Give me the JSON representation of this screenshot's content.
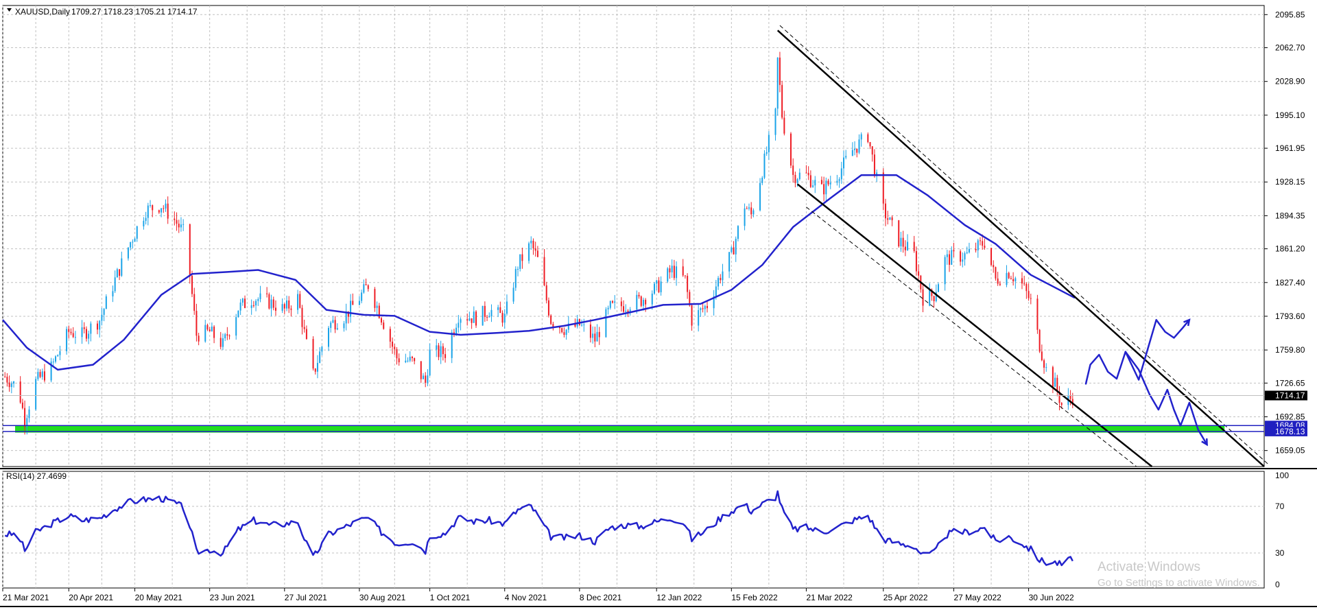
{
  "chart_data": [
    {
      "type": "candlestick",
      "header": {
        "symbol": "XAUUSD,Daily",
        "ohlc": "1709.27 1718.23 1705.21 1714.17"
      },
      "y_ticks": [
        2095.85,
        2062.7,
        2028.9,
        1995.1,
        1961.95,
        1928.15,
        1894.35,
        1861.2,
        1827.4,
        1793.6,
        1759.8,
        1726.65,
        1692.85,
        1659.05
      ],
      "y_tick_labels": [
        "2095.85",
        "2062.70",
        "2028.90",
        "1995.10",
        "1961.95",
        "1928.15",
        "1894.35",
        "1861.20",
        "1827.40",
        "1793.60",
        "1759.80",
        "1726.65",
        "1692.85",
        "1659.05"
      ],
      "ylim": [
        1643,
        2105
      ],
      "x_ticks": [
        "2021-03-21",
        "2021-04-20",
        "2021-05-20",
        "2021-06-23",
        "2021-07-27",
        "2021-08-30",
        "2021-10-01",
        "2021-11-04",
        "2021-12-08",
        "2022-01-12",
        "2022-02-15",
        "2022-03-21",
        "2022-04-25",
        "2022-05-27",
        "2022-06-30"
      ],
      "x_tick_labels": [
        "21 Mar 2021",
        "20 Apr 2021",
        "20 May 2021",
        "23 Jun 2021",
        "27 Jul 2021",
        "30 Aug 2021",
        "1 Oct 2021",
        "4 Nov 2021",
        "8 Dec 2021",
        "12 Jan 2022",
        "15 Feb 2022",
        "21 Mar 2022",
        "25 Apr 2022",
        "27 May 2022",
        "30 Jun 2022"
      ],
      "xlim": [
        "2021-03-21",
        "2022-10-15"
      ],
      "price_path": [
        [
          "2021-03-21",
          1735
        ],
        [
          "2021-03-28",
          1722
        ],
        [
          "2021-03-31",
          1690
        ],
        [
          "2021-04-05",
          1728
        ],
        [
          "2021-04-12",
          1742
        ],
        [
          "2021-04-20",
          1778
        ],
        [
          "2021-04-26",
          1775
        ],
        [
          "2021-05-04",
          1790
        ],
        [
          "2021-05-11",
          1830
        ],
        [
          "2021-05-18",
          1868
        ],
        [
          "2021-05-25",
          1900
        ],
        [
          "2021-06-01",
          1905
        ],
        [
          "2021-06-07",
          1890
        ],
        [
          "2021-06-12",
          1875
        ],
        [
          "2021-06-17",
          1775
        ],
        [
          "2021-06-23",
          1778
        ],
        [
          "2021-06-29",
          1765
        ],
        [
          "2021-07-06",
          1802
        ],
        [
          "2021-07-13",
          1812
        ],
        [
          "2021-07-20",
          1808
        ],
        [
          "2021-07-27",
          1800
        ],
        [
          "2021-08-02",
          1812
        ],
        [
          "2021-08-06",
          1765
        ],
        [
          "2021-08-09",
          1735
        ],
        [
          "2021-08-16",
          1785
        ],
        [
          "2021-08-23",
          1793
        ],
        [
          "2021-08-30",
          1812
        ],
        [
          "2021-09-03",
          1825
        ],
        [
          "2021-09-09",
          1793
        ],
        [
          "2021-09-16",
          1752
        ],
        [
          "2021-09-23",
          1748
        ],
        [
          "2021-09-29",
          1727
        ],
        [
          "2021-10-01",
          1757
        ],
        [
          "2021-10-08",
          1757
        ],
        [
          "2021-10-14",
          1795
        ],
        [
          "2021-10-22",
          1792
        ],
        [
          "2021-10-28",
          1800
        ],
        [
          "2021-11-04",
          1792
        ],
        [
          "2021-11-10",
          1845
        ],
        [
          "2021-11-16",
          1866
        ],
        [
          "2021-11-19",
          1850
        ],
        [
          "2021-11-25",
          1790
        ],
        [
          "2021-12-02",
          1780
        ],
        [
          "2021-12-08",
          1785
        ],
        [
          "2021-12-15",
          1770
        ],
        [
          "2021-12-22",
          1802
        ],
        [
          "2021-12-29",
          1805
        ],
        [
          "2022-01-05",
          1810
        ],
        [
          "2022-01-12",
          1822
        ],
        [
          "2022-01-19",
          1840
        ],
        [
          "2022-01-25",
          1830
        ],
        [
          "2022-01-28",
          1790
        ],
        [
          "2022-02-04",
          1805
        ],
        [
          "2022-02-10",
          1835
        ],
        [
          "2022-02-15",
          1855
        ],
        [
          "2022-02-21",
          1905
        ],
        [
          "2022-02-24",
          1895
        ],
        [
          "2022-03-01",
          1940
        ],
        [
          "2022-03-07",
          1995
        ],
        [
          "2022-03-08",
          2050
        ],
        [
          "2022-03-10",
          1995
        ],
        [
          "2022-03-15",
          1935
        ],
        [
          "2022-03-21",
          1935
        ],
        [
          "2022-03-28",
          1920
        ],
        [
          "2022-04-04",
          1935
        ],
        [
          "2022-04-11",
          1960
        ],
        [
          "2022-04-18",
          1975
        ],
        [
          "2022-04-22",
          1930
        ],
        [
          "2022-04-25",
          1900
        ],
        [
          "2022-05-02",
          1870
        ],
        [
          "2022-05-09",
          1855
        ],
        [
          "2022-05-13",
          1812
        ],
        [
          "2022-05-18",
          1815
        ],
        [
          "2022-05-23",
          1850
        ],
        [
          "2022-05-27",
          1853
        ],
        [
          "2022-06-02",
          1855
        ],
        [
          "2022-06-10",
          1868
        ],
        [
          "2022-06-15",
          1830
        ],
        [
          "2022-06-21",
          1838
        ],
        [
          "2022-06-27",
          1825
        ],
        [
          "2022-07-01",
          1808
        ],
        [
          "2022-07-05",
          1765
        ],
        [
          "2022-07-08",
          1740
        ],
        [
          "2022-07-12",
          1725
        ],
        [
          "2022-07-15",
          1705
        ],
        [
          "2022-07-21",
          1714
        ]
      ],
      "moving_average": [
        [
          "2021-03-21",
          1790
        ],
        [
          "2021-04-01",
          1762
        ],
        [
          "2021-04-15",
          1740
        ],
        [
          "2021-05-01",
          1745
        ],
        [
          "2021-05-15",
          1770
        ],
        [
          "2021-06-01",
          1815
        ],
        [
          "2021-06-15",
          1836
        ],
        [
          "2021-07-01",
          1838
        ],
        [
          "2021-07-15",
          1840
        ],
        [
          "2021-08-01",
          1830
        ],
        [
          "2021-08-15",
          1800
        ],
        [
          "2021-09-01",
          1795
        ],
        [
          "2021-09-15",
          1794
        ],
        [
          "2021-10-01",
          1778
        ],
        [
          "2021-10-15",
          1775
        ],
        [
          "2021-11-01",
          1777
        ],
        [
          "2021-11-15",
          1779
        ],
        [
          "2021-12-01",
          1784
        ],
        [
          "2021-12-15",
          1790
        ],
        [
          "2022-01-01",
          1798
        ],
        [
          "2022-01-15",
          1805
        ],
        [
          "2022-02-01",
          1806
        ],
        [
          "2022-02-15",
          1820
        ],
        [
          "2022-03-01",
          1845
        ],
        [
          "2022-03-15",
          1883
        ],
        [
          "2022-04-01",
          1912
        ],
        [
          "2022-04-15",
          1935
        ],
        [
          "2022-05-01",
          1935
        ],
        [
          "2022-05-15",
          1915
        ],
        [
          "2022-06-01",
          1885
        ],
        [
          "2022-06-15",
          1866
        ],
        [
          "2022-07-01",
          1835
        ],
        [
          "2022-07-21",
          1812
        ]
      ],
      "channel_lines": [
        {
          "style": "solid",
          "points": [
            [
              "2022-03-08",
              2080
            ],
            [
              "2022-10-15",
              1643
            ]
          ]
        },
        {
          "style": "dashed",
          "points": [
            [
              "2022-03-09",
              2085
            ],
            [
              "2022-10-17",
              1645
            ]
          ]
        },
        {
          "style": "solid",
          "points": [
            [
              "2022-03-17",
              1926
            ],
            [
              "2022-08-25",
              1643
            ]
          ]
        },
        {
          "style": "dashed",
          "points": [
            [
              "2022-03-21",
              1903
            ],
            [
              "2022-08-18",
              1643
            ]
          ]
        }
      ],
      "drawn_paths": [
        [
          [
            "2022-07-26",
            1726
          ],
          [
            "2022-07-28",
            1745
          ],
          [
            "2022-08-01",
            1755
          ],
          [
            "2022-08-05",
            1738
          ],
          [
            "2022-08-09",
            1731
          ],
          [
            "2022-08-13",
            1758
          ],
          [
            "2022-08-19",
            1730
          ],
          [
            "2022-08-23",
            1760
          ],
          [
            "2022-08-27",
            1790
          ],
          [
            "2022-08-31",
            1778
          ],
          [
            "2022-09-04",
            1772
          ],
          [
            "2022-09-08",
            1782
          ],
          [
            "2022-09-11",
            1790
          ]
        ],
        [
          [
            "2022-08-13",
            1758
          ],
          [
            "2022-08-19",
            1740
          ],
          [
            "2022-08-24",
            1715
          ],
          [
            "2022-08-28",
            1700
          ],
          [
            "2022-09-01",
            1720
          ],
          [
            "2022-09-04",
            1700
          ],
          [
            "2022-09-07",
            1684
          ],
          [
            "2022-09-11",
            1707
          ],
          [
            "2022-09-15",
            1680
          ],
          [
            "2022-09-19",
            1665
          ]
        ]
      ],
      "horizontal_levels": [
        {
          "value": 1684.08,
          "label": "1684.08",
          "color": "#2020c0"
        },
        {
          "value": 1678.13,
          "label": "1678.13",
          "color": "#2020c0"
        }
      ],
      "zone": {
        "from": 1677,
        "to": 1684,
        "x_end": "2022-09-27",
        "color": "#22dd22"
      },
      "current_price": {
        "value": 1714.17,
        "label": "1714.17"
      },
      "colors": {
        "bull": "#19a3e8",
        "bear": "#ee1c24",
        "ma": "#2222cc",
        "channel": "#000000",
        "grid": "#c0c0c0"
      }
    },
    {
      "type": "line",
      "title": "RSI(14) 27.4699",
      "y_ticks": [
        100,
        70,
        30,
        0
      ],
      "y_tick_labels": [
        "100",
        "70",
        "30",
        "0"
      ],
      "ylim": [
        0,
        100
      ],
      "series": [
        {
          "values": [
            [
              "2021-03-21",
              46
            ],
            [
              "2021-03-28",
              46
            ],
            [
              "2021-03-31",
              32
            ],
            [
              "2021-04-05",
              48
            ],
            [
              "2021-04-12",
              55
            ],
            [
              "2021-04-20",
              62
            ],
            [
              "2021-04-26",
              58
            ],
            [
              "2021-05-04",
              60
            ],
            [
              "2021-05-11",
              68
            ],
            [
              "2021-05-18",
              74
            ],
            [
              "2021-05-25",
              76
            ],
            [
              "2021-06-01",
              77
            ],
            [
              "2021-06-07",
              73
            ],
            [
              "2021-06-12",
              68
            ],
            [
              "2021-06-17",
              31
            ],
            [
              "2021-06-23",
              33
            ],
            [
              "2021-06-29",
              30
            ],
            [
              "2021-07-06",
              50
            ],
            [
              "2021-07-13",
              58
            ],
            [
              "2021-07-20",
              54
            ],
            [
              "2021-07-27",
              55
            ],
            [
              "2021-08-02",
              57
            ],
            [
              "2021-08-06",
              38
            ],
            [
              "2021-08-09",
              26
            ],
            [
              "2021-08-16",
              46
            ],
            [
              "2021-08-23",
              52
            ],
            [
              "2021-08-30",
              58
            ],
            [
              "2021-09-03",
              60
            ],
            [
              "2021-09-09",
              48
            ],
            [
              "2021-09-16",
              38
            ],
            [
              "2021-09-23",
              40
            ],
            [
              "2021-09-29",
              32
            ],
            [
              "2021-10-01",
              45
            ],
            [
              "2021-10-08",
              47
            ],
            [
              "2021-10-14",
              60
            ],
            [
              "2021-10-22",
              57
            ],
            [
              "2021-10-28",
              58
            ],
            [
              "2021-11-04",
              55
            ],
            [
              "2021-11-10",
              67
            ],
            [
              "2021-11-16",
              70
            ],
            [
              "2021-11-19",
              62
            ],
            [
              "2021-11-25",
              44
            ],
            [
              "2021-12-02",
              43
            ],
            [
              "2021-12-08",
              45
            ],
            [
              "2021-12-15",
              40
            ],
            [
              "2021-12-22",
              52
            ],
            [
              "2021-12-29",
              54
            ],
            [
              "2022-01-05",
              53
            ],
            [
              "2022-01-12",
              57
            ],
            [
              "2022-01-19",
              60
            ],
            [
              "2022-01-25",
              55
            ],
            [
              "2022-01-28",
              42
            ],
            [
              "2022-02-04",
              50
            ],
            [
              "2022-02-10",
              60
            ],
            [
              "2022-02-15",
              66
            ],
            [
              "2022-02-21",
              72
            ],
            [
              "2022-02-24",
              66
            ],
            [
              "2022-03-01",
              72
            ],
            [
              "2022-03-07",
              78
            ],
            [
              "2022-03-08",
              82
            ],
            [
              "2022-03-10",
              68
            ],
            [
              "2022-03-15",
              50
            ],
            [
              "2022-03-21",
              52
            ],
            [
              "2022-03-28",
              48
            ],
            [
              "2022-04-04",
              52
            ],
            [
              "2022-04-11",
              58
            ],
            [
              "2022-04-18",
              62
            ],
            [
              "2022-04-22",
              50
            ],
            [
              "2022-04-25",
              42
            ],
            [
              "2022-05-02",
              38
            ],
            [
              "2022-05-09",
              36
            ],
            [
              "2022-05-13",
              28
            ],
            [
              "2022-05-18",
              30
            ],
            [
              "2022-05-23",
              45
            ],
            [
              "2022-05-27",
              48
            ],
            [
              "2022-06-02",
              48
            ],
            [
              "2022-06-10",
              52
            ],
            [
              "2022-06-15",
              40
            ],
            [
              "2022-06-21",
              44
            ],
            [
              "2022-06-27",
              38
            ],
            [
              "2022-07-01",
              33
            ],
            [
              "2022-07-05",
              24
            ],
            [
              "2022-07-08",
              22
            ],
            [
              "2022-07-12",
              22
            ],
            [
              "2022-07-15",
              20
            ],
            [
              "2022-07-21",
              27
            ]
          ]
        }
      ],
      "colors": {
        "line": "#2222cc",
        "grid": "#c0c0c0"
      }
    }
  ],
  "watermark": {
    "line1": "Activate Windows",
    "line2": "Go to Settings to activate Windows."
  }
}
